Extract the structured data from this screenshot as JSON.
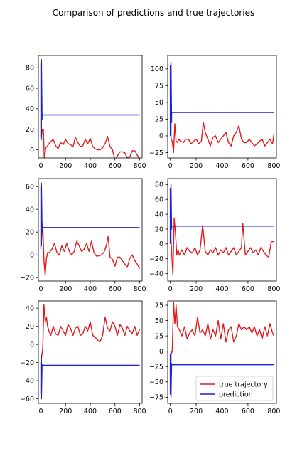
{
  "figure": {
    "title": "Comparison of predictions and true trajectories",
    "legend": {
      "placement": "lower-right",
      "entries": [
        "true trajectory",
        "prediction"
      ]
    },
    "colors": {
      "true_trajectory": "#e31a1c",
      "prediction": "#1f1fd6"
    }
  },
  "chart_data": [
    {
      "type": "line",
      "xlim": [
        -20,
        820
      ],
      "ylim": [
        -8,
        92
      ],
      "xticks": [
        0,
        200,
        400,
        600,
        800
      ],
      "yticks": [
        0,
        20,
        40,
        60,
        80
      ],
      "series": [
        {
          "name": "true trajectory",
          "x": [
            5,
            12,
            20,
            28,
            40,
            50,
            60,
            80,
            100,
            120,
            140,
            160,
            180,
            200,
            220,
            240,
            260,
            280,
            300,
            320,
            340,
            360,
            380,
            400,
            420,
            440,
            460,
            480,
            500,
            520,
            540,
            560,
            580,
            600,
            620,
            640,
            660,
            680,
            700,
            720,
            740,
            760,
            780,
            800
          ],
          "y": [
            12,
            20,
            20,
            -9,
            2,
            3,
            5,
            8,
            10,
            4,
            1,
            7,
            5,
            10,
            6,
            5,
            3,
            12,
            7,
            3,
            4,
            10,
            6,
            11,
            3,
            1,
            0,
            0,
            2,
            6,
            13,
            3,
            0,
            -10,
            -6,
            -2,
            -2,
            -3,
            -8,
            -7,
            -1,
            -1,
            -5,
            -10
          ]
        },
        {
          "name": "prediction",
          "x": [
            0,
            0,
            5,
            5,
            10,
            10,
            800
          ],
          "y": [
            12,
            85,
            10,
            88,
            30,
            34,
            34
          ]
        }
      ]
    },
    {
      "type": "line",
      "xlim": [
        -20,
        820
      ],
      "ylim": [
        -33,
        120
      ],
      "xticks": [
        0,
        200,
        400,
        600,
        800
      ],
      "yticks": [
        -25,
        0,
        25,
        50,
        75,
        100
      ],
      "series": [
        {
          "name": "true trajectory",
          "x": [
            5,
            15,
            25,
            35,
            45,
            55,
            65,
            80,
            100,
            120,
            140,
            160,
            180,
            200,
            220,
            240,
            255,
            270,
            290,
            310,
            330,
            350,
            370,
            390,
            410,
            430,
            450,
            470,
            490,
            510,
            530,
            550,
            570,
            590,
            610,
            630,
            650,
            670,
            690,
            710,
            730,
            750,
            770,
            790,
            800
          ],
          "y": [
            -5,
            -8,
            -25,
            18,
            -8,
            -10,
            -5,
            -8,
            -10,
            -5,
            -5,
            -12,
            -8,
            -5,
            -12,
            -8,
            20,
            5,
            -5,
            -15,
            -2,
            0,
            -10,
            -5,
            0,
            5,
            -10,
            -15,
            0,
            5,
            15,
            -5,
            -10,
            -10,
            -5,
            -10,
            -15,
            -12,
            -8,
            -5,
            -15,
            -10,
            -5,
            -12,
            2
          ]
        },
        {
          "name": "prediction",
          "x": [
            0,
            0,
            5,
            5,
            10,
            10,
            800
          ],
          "y": [
            0,
            105,
            -5,
            110,
            20,
            35,
            35
          ]
        }
      ]
    },
    {
      "type": "line",
      "xlim": [
        -20,
        820
      ],
      "ylim": [
        -23,
        67
      ],
      "xticks": [
        0,
        200,
        400,
        600,
        800
      ],
      "yticks": [
        -20,
        0,
        20,
        40,
        60
      ],
      "series": [
        {
          "name": "true trajectory",
          "x": [
            5,
            15,
            25,
            35,
            45,
            55,
            70,
            90,
            110,
            130,
            150,
            170,
            190,
            210,
            230,
            250,
            270,
            290,
            310,
            330,
            350,
            370,
            390,
            410,
            430,
            450,
            470,
            490,
            510,
            530,
            545,
            560,
            580,
            600,
            620,
            640,
            660,
            680,
            700,
            720,
            740,
            760,
            780,
            800
          ],
          "y": [
            10,
            28,
            -5,
            -18,
            -3,
            2,
            2,
            5,
            10,
            2,
            0,
            8,
            3,
            10,
            3,
            0,
            3,
            12,
            8,
            3,
            5,
            10,
            3,
            12,
            2,
            -1,
            -1,
            0,
            2,
            8,
            16,
            -2,
            -4,
            -10,
            -2,
            -2,
            -5,
            -8,
            -11,
            -3,
            0,
            -5,
            -8,
            -12
          ]
        },
        {
          "name": "prediction",
          "x": [
            0,
            0,
            5,
            5,
            10,
            10,
            800
          ],
          "y": [
            5,
            60,
            8,
            63,
            20,
            24,
            24
          ]
        }
      ]
    },
    {
      "type": "line",
      "xlim": [
        -20,
        820
      ],
      "ylim": [
        -50,
        88
      ],
      "xticks": [
        0,
        200,
        400,
        600,
        800
      ],
      "yticks": [
        -40,
        -20,
        0,
        20,
        40,
        60,
        80
      ],
      "series": [
        {
          "name": "true trajectory",
          "x": [
            5,
            20,
            30,
            40,
            50,
            60,
            70,
            90,
            110,
            130,
            150,
            170,
            190,
            210,
            230,
            250,
            270,
            290,
            310,
            330,
            350,
            370,
            390,
            410,
            430,
            450,
            470,
            490,
            510,
            530,
            550,
            560,
            580,
            600,
            620,
            640,
            660,
            680,
            700,
            720,
            740,
            760,
            780,
            800
          ],
          "y": [
            5,
            -42,
            35,
            15,
            -15,
            -8,
            -15,
            -8,
            -15,
            -5,
            -10,
            -12,
            -5,
            -15,
            -8,
            25,
            -10,
            -15,
            -8,
            -12,
            -5,
            -15,
            -8,
            -12,
            -5,
            -15,
            -10,
            -5,
            -15,
            -10,
            -5,
            28,
            -15,
            -10,
            -5,
            -12,
            -8,
            -15,
            -5,
            -10,
            -15,
            -18,
            3,
            3
          ]
        },
        {
          "name": "prediction",
          "x": [
            0,
            0,
            5,
            5,
            10,
            10,
            800
          ],
          "y": [
            0,
            75,
            5,
            80,
            20,
            24,
            24
          ]
        }
      ]
    },
    {
      "type": "line",
      "xlim": [
        -20,
        820
      ],
      "ylim": [
        -65,
        48
      ],
      "xticks": [
        0,
        200,
        400,
        600,
        800
      ],
      "yticks": [
        -60,
        -40,
        -20,
        0,
        20,
        40
      ],
      "series": [
        {
          "name": "true trajectory",
          "x": [
            5,
            15,
            25,
            35,
            45,
            55,
            65,
            80,
            100,
            120,
            140,
            160,
            180,
            200,
            220,
            240,
            260,
            280,
            300,
            320,
            340,
            360,
            380,
            400,
            420,
            440,
            460,
            480,
            500,
            520,
            540,
            560,
            580,
            600,
            620,
            640,
            660,
            680,
            700,
            720,
            740,
            760,
            780,
            800
          ],
          "y": [
            -15,
            -5,
            44,
            25,
            30,
            20,
            15,
            10,
            20,
            12,
            10,
            20,
            15,
            10,
            22,
            18,
            10,
            18,
            20,
            10,
            12,
            20,
            15,
            25,
            10,
            8,
            5,
            3,
            10,
            30,
            18,
            15,
            25,
            20,
            10,
            22,
            18,
            10,
            20,
            15,
            12,
            20,
            10,
            17
          ]
        },
        {
          "name": "prediction",
          "x": [
            0,
            0,
            5,
            5,
            10,
            10,
            800
          ],
          "y": [
            -20,
            -55,
            -12,
            -60,
            -22,
            -23,
            -23
          ]
        }
      ]
    },
    {
      "type": "line",
      "xlim": [
        -20,
        820
      ],
      "ylim": [
        -85,
        82
      ],
      "xticks": [
        0,
        200,
        400,
        600,
        800
      ],
      "yticks": [
        -75,
        -50,
        -25,
        0,
        25,
        50,
        75
      ],
      "series": [
        {
          "name": "true trajectory",
          "x": [
            5,
            15,
            25,
            35,
            45,
            55,
            70,
            90,
            110,
            130,
            150,
            170,
            190,
            210,
            230,
            250,
            270,
            290,
            310,
            330,
            350,
            370,
            390,
            410,
            430,
            450,
            470,
            490,
            510,
            530,
            550,
            570,
            590,
            610,
            630,
            650,
            670,
            690,
            710,
            730,
            750,
            770,
            790,
            800
          ],
          "y": [
            -5,
            0,
            80,
            45,
            75,
            40,
            35,
            25,
            40,
            20,
            30,
            35,
            25,
            55,
            30,
            35,
            25,
            45,
            20,
            35,
            25,
            50,
            20,
            45,
            15,
            35,
            40,
            15,
            25,
            45,
            35,
            40,
            35,
            40,
            30,
            40,
            25,
            35,
            20,
            40,
            25,
            45,
            30,
            25
          ]
        },
        {
          "name": "prediction",
          "x": [
            0,
            0,
            5,
            5,
            10,
            10,
            800
          ],
          "y": [
            -5,
            -70,
            0,
            -75,
            -20,
            -22,
            -22
          ]
        }
      ]
    }
  ]
}
